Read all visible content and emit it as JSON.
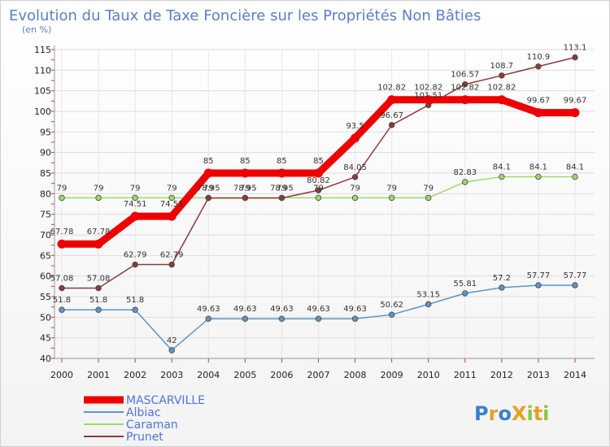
{
  "chart_data": {
    "type": "line",
    "title": "Evolution du Taux de Taxe Foncière sur les Propriétés Non Bâties",
    "ylabel": "(en %)",
    "xlabel": "",
    "ylim": [
      40,
      115
    ],
    "y_ticks": [
      40,
      45,
      50,
      55,
      60,
      65,
      70,
      75,
      80,
      85,
      90,
      95,
      100,
      105,
      110,
      115
    ],
    "categories": [
      "2000",
      "2001",
      "2002",
      "2003",
      "2004",
      "2005",
      "2006",
      "2007",
      "2008",
      "2009",
      "2010",
      "2011",
      "2012",
      "2013",
      "2014"
    ],
    "series": [
      {
        "name": "MASCARVILLE",
        "color": "#ee0000",
        "values": [
          67.78,
          67.78,
          74.51,
          74.51,
          85,
          85,
          85,
          85,
          93.5,
          102.82,
          102.82,
          102.82,
          102.82,
          99.67,
          99.67
        ],
        "labels": [
          "67.78",
          "67.78",
          "74.51",
          "74.51",
          "85",
          "85",
          "85",
          "85",
          "93.5",
          "102.82",
          "102.82",
          "102.82",
          "102.82",
          "99.67",
          "99.67"
        ]
      },
      {
        "name": "Albiac",
        "color": "#5d95c8",
        "values": [
          51.8,
          51.8,
          51.8,
          42,
          49.63,
          49.63,
          49.63,
          49.63,
          49.63,
          50.62,
          53.15,
          55.81,
          57.2,
          57.77,
          57.77
        ],
        "labels": [
          "51.8",
          "51.8",
          "51.8",
          "42",
          "49.63",
          "49.63",
          "49.63",
          "49.63",
          "49.63",
          "50.62",
          "53.15",
          "55.81",
          "57.2",
          "57.77",
          "57.77"
        ]
      },
      {
        "name": "Caraman",
        "color": "#9fd86a",
        "values": [
          79,
          79,
          79,
          79,
          79,
          79,
          79,
          79,
          79,
          79,
          79,
          82.83,
          84.1,
          84.1,
          84.1
        ],
        "labels": [
          "79",
          "79",
          "79",
          "79",
          "79",
          "79",
          "79",
          "79",
          "79",
          "79",
          "79",
          "82.83",
          "84.1",
          "84.1",
          "84.1"
        ]
      },
      {
        "name": "Prunet",
        "color": "#8b3a3a",
        "values": [
          57.08,
          57.08,
          62.79,
          62.79,
          78.95,
          78.95,
          78.95,
          80.82,
          84.05,
          96.67,
          101.51,
          106.57,
          108.7,
          110.9,
          113.1
        ],
        "labels": [
          "57.08",
          "57.08",
          "62.79",
          "62.79",
          "78.95",
          "78.95",
          "78.95",
          "80.82",
          "84.05",
          "96.67",
          "101.51",
          "106.57",
          "108.7",
          "110.9",
          "113.1"
        ]
      }
    ]
  },
  "logo": {
    "text": "ProXiti"
  }
}
